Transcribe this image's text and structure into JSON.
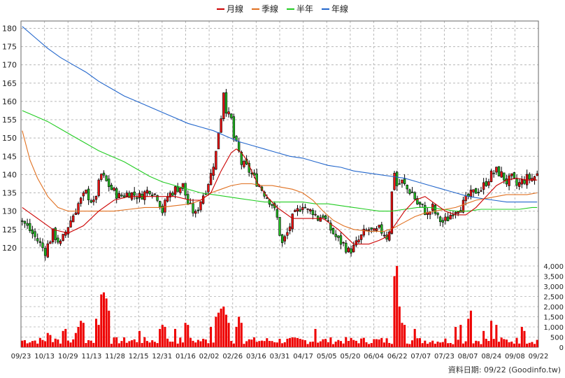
{
  "chart_data": {
    "type": "candlestick",
    "legend": [
      {
        "name": "月線",
        "color": "#cc0000"
      },
      {
        "name": "季線",
        "color": "#e07020"
      },
      {
        "name": "半年",
        "color": "#22cc22"
      },
      {
        "name": "年線",
        "color": "#2266cc"
      }
    ],
    "price_axis": {
      "ylim": [
        115,
        182
      ],
      "ticks": [
        120,
        125,
        130,
        135,
        140,
        145,
        150,
        155,
        160,
        165,
        170,
        175,
        180
      ]
    },
    "volume_axis": {
      "ylim": [
        0,
        4000
      ],
      "ticks": [
        "0",
        "500",
        "1,000",
        "1,500",
        "2,000",
        "2,500",
        "3,000",
        "3,500",
        "4,000"
      ]
    },
    "x_tick_labels": [
      "09/23",
      "10/13",
      "10/29",
      "11/13",
      "11/28",
      "12/15",
      "12/31",
      "01/16",
      "02/02",
      "02/26",
      "03/16",
      "03/31",
      "04/17",
      "05/05",
      "05/20",
      "06/04",
      "06/22",
      "07/07",
      "07/23",
      "08/07",
      "08/24",
      "09/08",
      "09/22"
    ],
    "price_path": [
      [
        0,
        127.5
      ],
      [
        6,
        122
      ],
      [
        9,
        119
      ],
      [
        12,
        124
      ],
      [
        15,
        121
      ],
      [
        18,
        126
      ],
      [
        22,
        132
      ],
      [
        25,
        135
      ],
      [
        28,
        132
      ],
      [
        31,
        140
      ],
      [
        33,
        138
      ],
      [
        35,
        136
      ],
      [
        38,
        134
      ],
      [
        42,
        135
      ],
      [
        46,
        134
      ],
      [
        50,
        136
      ],
      [
        53,
        134
      ],
      [
        55,
        130
      ],
      [
        57,
        134
      ],
      [
        60,
        136
      ],
      [
        63,
        137
      ],
      [
        65,
        132
      ],
      [
        68,
        129
      ],
      [
        70,
        133
      ],
      [
        72,
        136
      ],
      [
        74,
        140
      ],
      [
        76,
        146
      ],
      [
        77,
        152
      ],
      [
        78,
        156
      ],
      [
        79,
        163
      ],
      [
        80,
        158
      ],
      [
        81,
        156
      ],
      [
        82,
        155
      ],
      [
        83,
        150
      ],
      [
        85,
        146
      ],
      [
        86,
        143
      ],
      [
        88,
        142
      ],
      [
        90,
        140
      ],
      [
        92,
        138
      ],
      [
        94,
        136
      ],
      [
        96,
        134
      ],
      [
        98,
        132
      ],
      [
        100,
        128
      ],
      [
        101,
        124
      ],
      [
        102,
        121
      ],
      [
        104,
        124
      ],
      [
        106,
        128
      ],
      [
        108,
        130
      ],
      [
        110,
        132
      ],
      [
        112,
        130
      ],
      [
        114,
        130
      ],
      [
        116,
        128
      ],
      [
        118,
        129
      ],
      [
        120,
        126
      ],
      [
        122,
        124
      ],
      [
        124,
        122
      ],
      [
        126,
        121
      ],
      [
        128,
        119
      ],
      [
        130,
        120
      ],
      [
        132,
        122
      ],
      [
        134,
        124
      ],
      [
        136,
        125
      ],
      [
        138,
        124
      ],
      [
        140,
        125
      ],
      [
        142,
        124
      ],
      [
        143,
        123
      ],
      [
        144,
        125
      ],
      [
        145,
        135
      ],
      [
        146,
        141
      ],
      [
        147,
        137
      ],
      [
        149,
        138
      ],
      [
        151,
        136
      ],
      [
        153,
        135
      ],
      [
        155,
        132
      ],
      [
        157,
        131
      ],
      [
        159,
        129
      ],
      [
        161,
        131
      ],
      [
        163,
        128
      ],
      [
        165,
        127
      ],
      [
        167,
        128
      ],
      [
        169,
        130
      ],
      [
        171,
        131
      ],
      [
        173,
        132
      ],
      [
        175,
        134
      ],
      [
        177,
        135
      ],
      [
        179,
        136
      ],
      [
        180,
        136
      ],
      [
        182,
        138
      ],
      [
        184,
        140
      ],
      [
        186,
        141
      ],
      [
        188,
        140
      ],
      [
        190,
        138
      ],
      [
        192,
        139
      ],
      [
        194,
        137
      ],
      [
        196,
        138
      ],
      [
        198,
        139
      ],
      [
        200,
        139
      ],
      [
        202,
        140
      ]
    ],
    "ma_month": [
      [
        0,
        131
      ],
      [
        6,
        128
      ],
      [
        12,
        125
      ],
      [
        18,
        124
      ],
      [
        24,
        126
      ],
      [
        30,
        130
      ],
      [
        36,
        133
      ],
      [
        42,
        134
      ],
      [
        48,
        134
      ],
      [
        54,
        134
      ],
      [
        60,
        134
      ],
      [
        66,
        133
      ],
      [
        70,
        133
      ],
      [
        74,
        135
      ],
      [
        78,
        141
      ],
      [
        82,
        146
      ],
      [
        84,
        147
      ],
      [
        86,
        146
      ],
      [
        88,
        144
      ],
      [
        92,
        138
      ],
      [
        96,
        134
      ],
      [
        100,
        131
      ],
      [
        106,
        128
      ],
      [
        112,
        128
      ],
      [
        118,
        128
      ],
      [
        124,
        125
      ],
      [
        130,
        121
      ],
      [
        136,
        121
      ],
      [
        140,
        122
      ],
      [
        143,
        123
      ],
      [
        147,
        127
      ],
      [
        150,
        130
      ],
      [
        154,
        133
      ],
      [
        158,
        134
      ],
      [
        162,
        132
      ],
      [
        166,
        130
      ],
      [
        170,
        129
      ],
      [
        174,
        129
      ],
      [
        178,
        131
      ],
      [
        182,
        134
      ],
      [
        186,
        137
      ],
      [
        190,
        138.5
      ],
      [
        194,
        139
      ],
      [
        198,
        138.5
      ],
      [
        202,
        138.5
      ]
    ],
    "ma_quarter": [
      [
        0,
        152
      ],
      [
        3,
        144
      ],
      [
        6,
        139
      ],
      [
        10,
        134
      ],
      [
        14,
        131
      ],
      [
        18,
        130
      ],
      [
        24,
        130
      ],
      [
        30,
        130
      ],
      [
        36,
        130
      ],
      [
        42,
        130.5
      ],
      [
        48,
        131
      ],
      [
        54,
        131
      ],
      [
        60,
        131.5
      ],
      [
        66,
        132
      ],
      [
        70,
        133
      ],
      [
        74,
        135
      ],
      [
        78,
        136
      ],
      [
        82,
        137
      ],
      [
        86,
        137.5
      ],
      [
        90,
        137.5
      ],
      [
        94,
        137
      ],
      [
        98,
        137
      ],
      [
        102,
        136.5
      ],
      [
        106,
        136
      ],
      [
        110,
        135
      ],
      [
        114,
        133
      ],
      [
        118,
        130
      ],
      [
        122,
        127.5
      ],
      [
        126,
        126
      ],
      [
        130,
        125
      ],
      [
        136,
        124.5
      ],
      [
        142,
        124.5
      ],
      [
        146,
        125.5
      ],
      [
        150,
        127
      ],
      [
        154,
        128.5
      ],
      [
        158,
        129.5
      ],
      [
        162,
        130
      ],
      [
        166,
        130.5
      ],
      [
        170,
        131
      ],
      [
        174,
        132
      ],
      [
        178,
        133
      ],
      [
        182,
        133.5
      ],
      [
        186,
        134
      ],
      [
        190,
        134.5
      ],
      [
        194,
        134.5
      ],
      [
        198,
        134.5
      ],
      [
        202,
        135
      ]
    ],
    "ma_half": [
      [
        0,
        157.5
      ],
      [
        5,
        156
      ],
      [
        10,
        154.5
      ],
      [
        15,
        152.5
      ],
      [
        20,
        150.5
      ],
      [
        25,
        148.5
      ],
      [
        30,
        146.5
      ],
      [
        35,
        145
      ],
      [
        40,
        143.5
      ],
      [
        45,
        141.5
      ],
      [
        50,
        139.5
      ],
      [
        55,
        138
      ],
      [
        60,
        137
      ],
      [
        65,
        136
      ],
      [
        70,
        135
      ],
      [
        75,
        134.5
      ],
      [
        80,
        134
      ],
      [
        85,
        133.5
      ],
      [
        90,
        133
      ],
      [
        95,
        132.5
      ],
      [
        100,
        132.5
      ],
      [
        105,
        132.5
      ],
      [
        110,
        132.5
      ],
      [
        115,
        132
      ],
      [
        120,
        132
      ],
      [
        125,
        131.5
      ],
      [
        130,
        131
      ],
      [
        135,
        130.5
      ],
      [
        140,
        130
      ],
      [
        145,
        130
      ],
      [
        150,
        130.5
      ],
      [
        155,
        131
      ],
      [
        160,
        131
      ],
      [
        165,
        130.5
      ],
      [
        170,
        130
      ],
      [
        175,
        130
      ],
      [
        180,
        130.5
      ],
      [
        185,
        130.5
      ],
      [
        190,
        130.5
      ],
      [
        195,
        130.5
      ],
      [
        200,
        131
      ],
      [
        202,
        131
      ]
    ],
    "ma_year": [
      [
        0,
        180.5
      ],
      [
        5,
        177.5
      ],
      [
        10,
        174.5
      ],
      [
        15,
        172
      ],
      [
        20,
        170
      ],
      [
        25,
        168
      ],
      [
        30,
        165.5
      ],
      [
        35,
        163.5
      ],
      [
        40,
        161.5
      ],
      [
        45,
        160
      ],
      [
        50,
        158.5
      ],
      [
        55,
        157
      ],
      [
        60,
        155.5
      ],
      [
        65,
        154
      ],
      [
        70,
        153
      ],
      [
        75,
        152
      ],
      [
        80,
        150.5
      ],
      [
        85,
        149
      ],
      [
        90,
        148
      ],
      [
        95,
        147
      ],
      [
        100,
        146
      ],
      [
        105,
        145
      ],
      [
        110,
        144.5
      ],
      [
        115,
        143.5
      ],
      [
        120,
        142.5
      ],
      [
        125,
        142
      ],
      [
        130,
        141
      ],
      [
        135,
        140.5
      ],
      [
        140,
        140
      ],
      [
        145,
        139.5
      ],
      [
        150,
        139
      ],
      [
        155,
        138
      ],
      [
        160,
        137
      ],
      [
        165,
        136
      ],
      [
        170,
        135
      ],
      [
        175,
        134
      ],
      [
        180,
        133.5
      ],
      [
        185,
        133
      ],
      [
        190,
        132.5
      ],
      [
        195,
        132.5
      ],
      [
        200,
        132.5
      ],
      [
        202,
        132.5
      ]
    ],
    "volume_spikes": [
      [
        10,
        700
      ],
      [
        11,
        600
      ],
      [
        16,
        800
      ],
      [
        17,
        900
      ],
      [
        21,
        700
      ],
      [
        22,
        1000
      ],
      [
        23,
        1300
      ],
      [
        24,
        1200
      ],
      [
        29,
        1400
      ],
      [
        30,
        1100
      ],
      [
        31,
        2600
      ],
      [
        32,
        2700
      ],
      [
        33,
        2400
      ],
      [
        34,
        1800
      ],
      [
        46,
        800
      ],
      [
        54,
        900
      ],
      [
        55,
        1100
      ],
      [
        56,
        1000
      ],
      [
        60,
        900
      ],
      [
        64,
        1200
      ],
      [
        65,
        1100
      ],
      [
        74,
        1000
      ],
      [
        76,
        1500
      ],
      [
        77,
        1700
      ],
      [
        78,
        1900
      ],
      [
        79,
        2000
      ],
      [
        80,
        1600
      ],
      [
        81,
        1200
      ],
      [
        84,
        1000
      ],
      [
        85,
        1500
      ],
      [
        86,
        1200
      ],
      [
        115,
        900
      ],
      [
        146,
        3500
      ],
      [
        147,
        4000
      ],
      [
        148,
        2000
      ],
      [
        149,
        1200
      ],
      [
        150,
        1100
      ],
      [
        154,
        900
      ],
      [
        170,
        1000
      ],
      [
        172,
        1100
      ],
      [
        175,
        1400
      ],
      [
        176,
        1800
      ],
      [
        181,
        800
      ],
      [
        184,
        1300
      ],
      [
        186,
        1100
      ],
      [
        196,
        1000
      ],
      [
        197,
        800
      ]
    ],
    "source": "資料日期: 09/22  (Goodinfo.tw)"
  }
}
